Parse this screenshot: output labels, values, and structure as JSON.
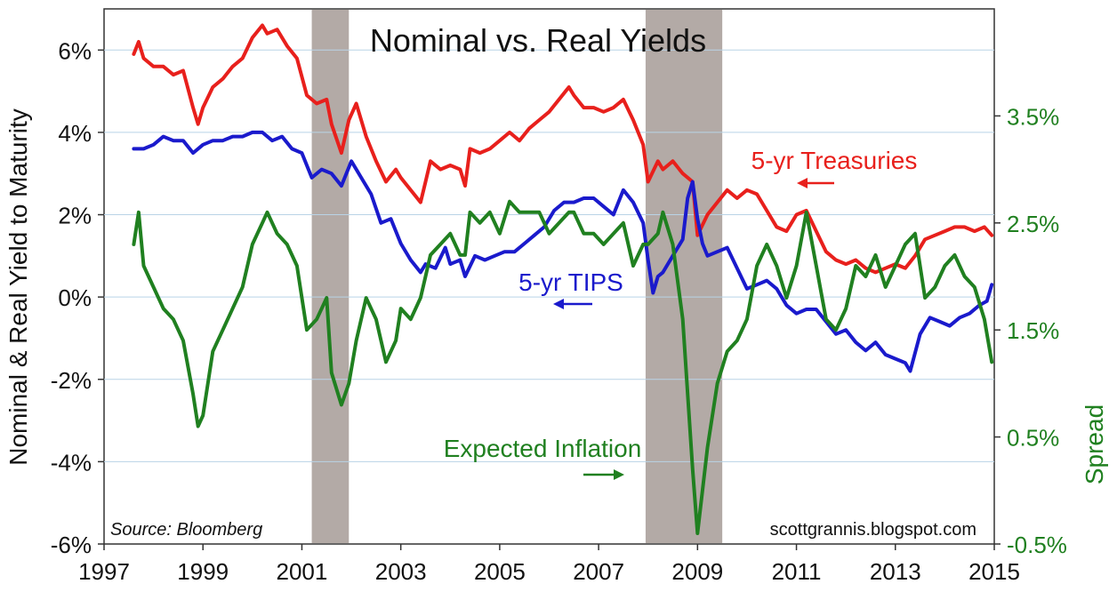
{
  "chart_data": {
    "type": "line",
    "title": "Nominal vs. Real Yields",
    "ylabel_left": "Nominal & Real Yield to Maturity",
    "ylabel_right": "Spread",
    "source": "Source: Bloomberg",
    "credit": "scottgrannis.blogspot.com",
    "xlim": [
      1997.0,
      2015.0
    ],
    "ylim_left": [
      -6,
      7
    ],
    "ylim_right": [
      -0.5,
      4.5
    ],
    "x_ticks": [
      1997,
      1999,
      2001,
      2003,
      2005,
      2007,
      2009,
      2011,
      2013,
      2015
    ],
    "x_tick_labels": [
      "1997",
      "1999",
      "2001",
      "2003",
      "2005",
      "2007",
      "2009",
      "2011",
      "2013",
      "2015"
    ],
    "y_left_ticks": [
      6,
      4,
      2,
      0,
      -2,
      -4,
      -6
    ],
    "y_left_tick_labels": [
      "6%",
      "4%",
      "2%",
      "0%",
      "-2%",
      "-4%",
      "-6%"
    ],
    "y_right_ticks": [
      3.5,
      2.5,
      1.5,
      0.5,
      -0.5
    ],
    "y_right_tick_labels": [
      "3.5%",
      "2.5%",
      "1.5%",
      "0.5%",
      "-0.5%"
    ],
    "grid": true,
    "recessions": [
      {
        "start": 2001.2,
        "end": 2001.95
      },
      {
        "start": 2007.95,
        "end": 2009.5
      }
    ],
    "series": [
      {
        "name": "5-yr Treasuries",
        "label": "5-yr Treasuries",
        "color": "#e8201c",
        "axis": "left",
        "x": [
          1997.6,
          1997.7,
          1997.8,
          1998.0,
          1998.2,
          1998.4,
          1998.6,
          1998.8,
          1998.9,
          1999.0,
          1999.2,
          1999.4,
          1999.6,
          1999.8,
          2000.0,
          2000.2,
          2000.3,
          2000.5,
          2000.7,
          2000.9,
          2001.1,
          2001.3,
          2001.5,
          2001.6,
          2001.8,
          2001.95,
          2002.1,
          2002.3,
          2002.5,
          2002.7,
          2002.9,
          2003.0,
          2003.2,
          2003.4,
          2003.5,
          2003.6,
          2003.8,
          2004.0,
          2004.2,
          2004.3,
          2004.4,
          2004.6,
          2004.8,
          2005.0,
          2005.2,
          2005.4,
          2005.6,
          2005.8,
          2006.0,
          2006.2,
          2006.4,
          2006.5,
          2006.7,
          2006.9,
          2007.1,
          2007.3,
          2007.5,
          2007.7,
          2007.9,
          2008.0,
          2008.2,
          2008.3,
          2008.5,
          2008.7,
          2008.9,
          2009.0,
          2009.2,
          2009.4,
          2009.6,
          2009.8,
          2010.0,
          2010.2,
          2010.4,
          2010.6,
          2010.8,
          2011.0,
          2011.2,
          2011.4,
          2011.6,
          2011.8,
          2012.0,
          2012.2,
          2012.4,
          2012.6,
          2012.8,
          2013.0,
          2013.2,
          2013.4,
          2013.6,
          2013.8,
          2014.0,
          2014.2,
          2014.4,
          2014.6,
          2014.8,
          2014.95
        ],
        "values": [
          5.9,
          6.2,
          5.8,
          5.6,
          5.6,
          5.4,
          5.5,
          4.6,
          4.2,
          4.6,
          5.1,
          5.3,
          5.6,
          5.8,
          6.3,
          6.6,
          6.4,
          6.5,
          6.1,
          5.8,
          4.9,
          4.7,
          4.8,
          4.2,
          3.5,
          4.3,
          4.7,
          3.9,
          3.3,
          2.8,
          3.1,
          2.9,
          2.6,
          2.3,
          2.8,
          3.3,
          3.1,
          3.2,
          3.1,
          2.7,
          3.6,
          3.5,
          3.6,
          3.8,
          4.0,
          3.8,
          4.1,
          4.3,
          4.5,
          4.8,
          5.1,
          4.9,
          4.6,
          4.6,
          4.5,
          4.6,
          4.8,
          4.3,
          3.7,
          2.8,
          3.3,
          3.1,
          3.3,
          3.0,
          2.8,
          1.5,
          2.0,
          2.3,
          2.6,
          2.4,
          2.6,
          2.5,
          2.1,
          1.7,
          1.6,
          2.0,
          2.1,
          1.6,
          1.1,
          0.9,
          0.8,
          0.9,
          0.7,
          0.6,
          0.7,
          0.8,
          0.7,
          1.0,
          1.4,
          1.5,
          1.6,
          1.7,
          1.7,
          1.6,
          1.7,
          1.5
        ]
      },
      {
        "name": "5-yr TIPS",
        "label": "5-yr TIPS",
        "color": "#1a1acc",
        "axis": "left",
        "x": [
          1997.6,
          1997.8,
          1998.0,
          1998.2,
          1998.4,
          1998.6,
          1998.8,
          1999.0,
          1999.2,
          1999.4,
          1999.6,
          1999.8,
          2000.0,
          2000.2,
          2000.4,
          2000.6,
          2000.8,
          2001.0,
          2001.2,
          2001.4,
          2001.6,
          2001.8,
          2002.0,
          2002.2,
          2002.4,
          2002.6,
          2002.8,
          2003.0,
          2003.2,
          2003.4,
          2003.5,
          2003.7,
          2003.9,
          2004.0,
          2004.2,
          2004.3,
          2004.5,
          2004.7,
          2004.9,
          2005.1,
          2005.3,
          2005.5,
          2005.7,
          2005.9,
          2006.1,
          2006.3,
          2006.5,
          2006.7,
          2006.9,
          2007.1,
          2007.3,
          2007.5,
          2007.7,
          2007.9,
          2008.0,
          2008.1,
          2008.2,
          2008.3,
          2008.5,
          2008.7,
          2008.8,
          2008.9,
          2009.0,
          2009.1,
          2009.2,
          2009.4,
          2009.6,
          2009.8,
          2010.0,
          2010.2,
          2010.4,
          2010.6,
          2010.8,
          2011.0,
          2011.2,
          2011.4,
          2011.6,
          2011.8,
          2012.0,
          2012.2,
          2012.4,
          2012.6,
          2012.8,
          2013.0,
          2013.2,
          2013.3,
          2013.5,
          2013.7,
          2013.9,
          2014.1,
          2014.3,
          2014.5,
          2014.7,
          2014.85,
          2014.95
        ],
        "values": [
          3.6,
          3.6,
          3.7,
          3.9,
          3.8,
          3.8,
          3.5,
          3.7,
          3.8,
          3.8,
          3.9,
          3.9,
          4.0,
          4.0,
          3.8,
          3.9,
          3.6,
          3.5,
          2.9,
          3.1,
          3.0,
          2.7,
          3.3,
          2.9,
          2.5,
          1.8,
          1.9,
          1.3,
          0.9,
          0.6,
          0.8,
          0.7,
          1.2,
          0.8,
          0.9,
          0.5,
          1.0,
          0.9,
          1.0,
          1.1,
          1.1,
          1.3,
          1.5,
          1.7,
          2.1,
          2.3,
          2.3,
          2.4,
          2.4,
          2.2,
          2.0,
          2.6,
          2.3,
          1.8,
          0.9,
          0.1,
          0.5,
          0.6,
          1.0,
          1.4,
          2.4,
          2.8,
          1.9,
          1.3,
          1.0,
          1.1,
          1.2,
          0.7,
          0.2,
          0.3,
          0.4,
          0.2,
          -0.2,
          -0.4,
          -0.3,
          -0.3,
          -0.6,
          -0.9,
          -0.8,
          -1.1,
          -1.3,
          -1.1,
          -1.4,
          -1.5,
          -1.6,
          -1.8,
          -0.9,
          -0.5,
          -0.6,
          -0.7,
          -0.5,
          -0.4,
          -0.2,
          -0.1,
          0.3
        ]
      },
      {
        "name": "Expected Inflation",
        "label": "Expected Inflation",
        "color": "#208020",
        "axis": "right",
        "x": [
          1997.6,
          1997.7,
          1997.8,
          1998.0,
          1998.2,
          1998.4,
          1998.6,
          1998.8,
          1998.9,
          1999.0,
          1999.2,
          1999.4,
          1999.6,
          1999.8,
          2000.0,
          2000.2,
          2000.3,
          2000.5,
          2000.7,
          2000.9,
          2001.1,
          2001.3,
          2001.5,
          2001.6,
          2001.8,
          2001.95,
          2002.1,
          2002.3,
          2002.5,
          2002.7,
          2002.9,
          2003.0,
          2003.2,
          2003.4,
          2003.5,
          2003.6,
          2003.8,
          2004.0,
          2004.2,
          2004.3,
          2004.4,
          2004.6,
          2004.8,
          2005.0,
          2005.2,
          2005.4,
          2005.6,
          2005.8,
          2006.0,
          2006.2,
          2006.4,
          2006.5,
          2006.7,
          2006.9,
          2007.1,
          2007.3,
          2007.5,
          2007.7,
          2007.9,
          2008.0,
          2008.2,
          2008.3,
          2008.5,
          2008.7,
          2008.9,
          2009.0,
          2009.2,
          2009.4,
          2009.6,
          2009.8,
          2010.0,
          2010.2,
          2010.4,
          2010.6,
          2010.8,
          2011.0,
          2011.2,
          2011.4,
          2011.6,
          2011.8,
          2012.0,
          2012.2,
          2012.4,
          2012.6,
          2012.8,
          2013.0,
          2013.2,
          2013.4,
          2013.6,
          2013.8,
          2014.0,
          2014.2,
          2014.4,
          2014.6,
          2014.8,
          2014.95
        ],
        "values": [
          2.3,
          2.6,
          2.1,
          1.9,
          1.7,
          1.6,
          1.4,
          0.9,
          0.6,
          0.7,
          1.3,
          1.5,
          1.7,
          1.9,
          2.3,
          2.5,
          2.6,
          2.4,
          2.3,
          2.1,
          1.5,
          1.6,
          1.8,
          1.1,
          0.8,
          1.0,
          1.4,
          1.8,
          1.6,
          1.2,
          1.4,
          1.7,
          1.6,
          1.8,
          2.0,
          2.2,
          2.3,
          2.4,
          2.2,
          2.2,
          2.6,
          2.5,
          2.6,
          2.4,
          2.7,
          2.6,
          2.6,
          2.6,
          2.4,
          2.5,
          2.6,
          2.6,
          2.4,
          2.4,
          2.3,
          2.4,
          2.5,
          2.1,
          2.3,
          2.3,
          2.4,
          2.6,
          2.3,
          1.6,
          0.2,
          -0.4,
          0.4,
          1.0,
          1.3,
          1.4,
          1.6,
          2.1,
          2.3,
          2.1,
          1.8,
          2.1,
          2.6,
          2.1,
          1.6,
          1.5,
          1.7,
          2.1,
          2.0,
          2.2,
          1.9,
          2.1,
          2.3,
          2.4,
          1.8,
          1.9,
          2.1,
          2.2,
          2.0,
          1.9,
          1.6,
          1.2
        ]
      }
    ]
  }
}
